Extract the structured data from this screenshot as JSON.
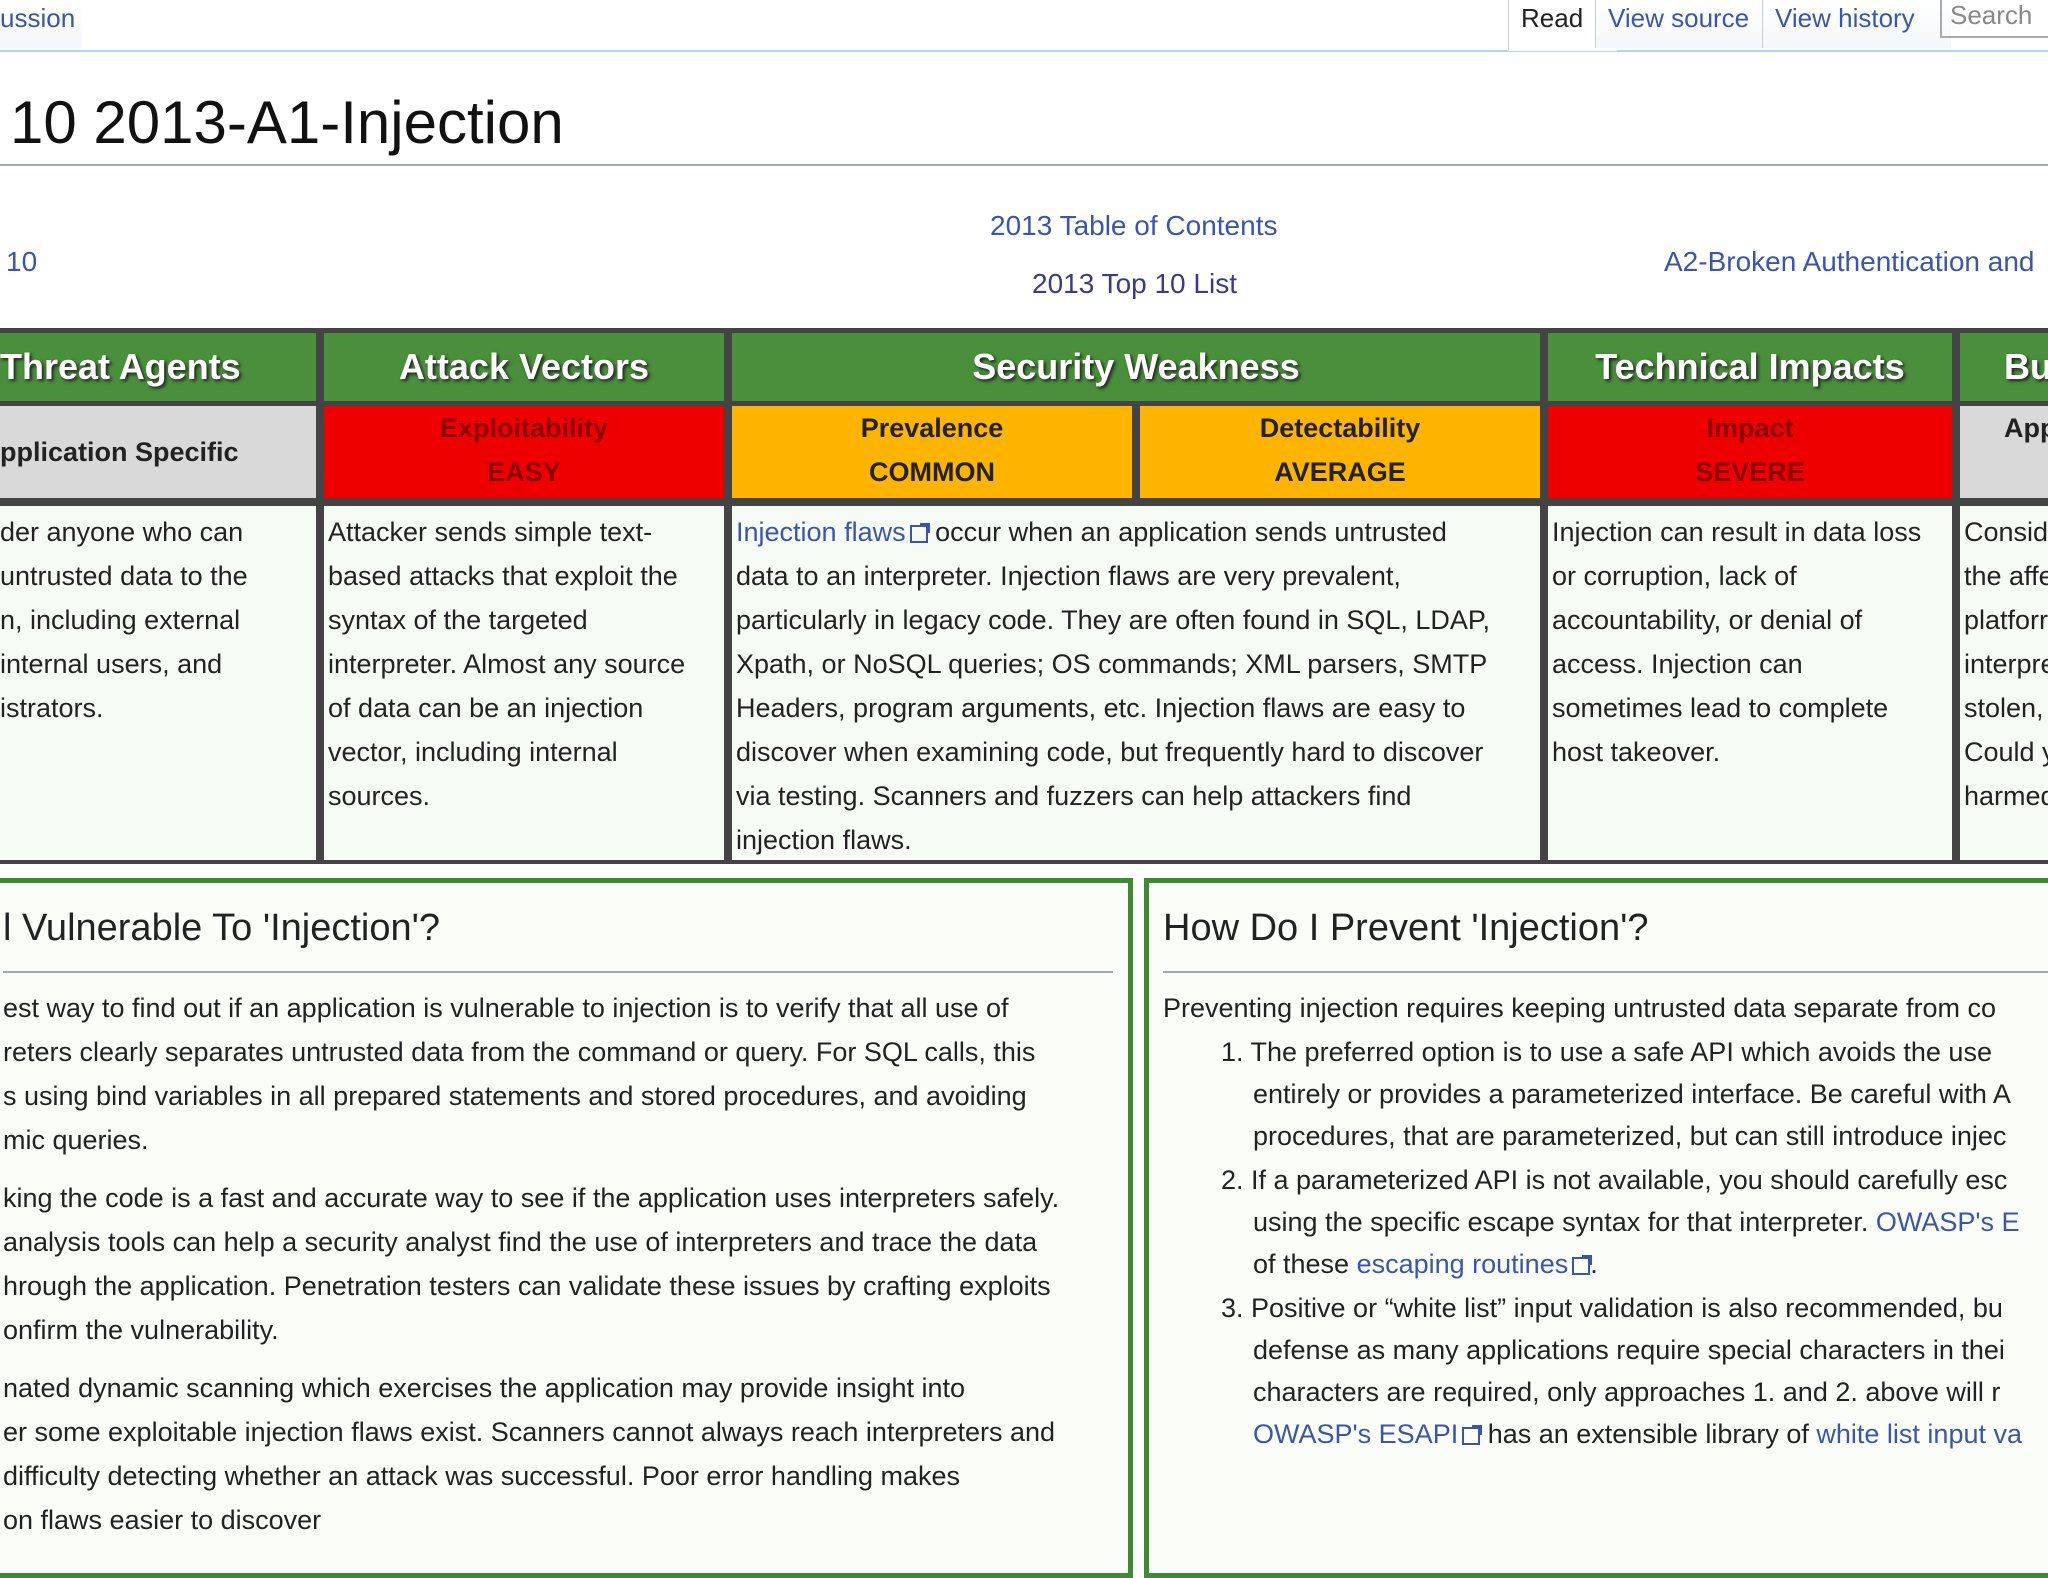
{
  "tabs": {
    "discussion": "ussion",
    "read": "Read",
    "view_source": "View source",
    "view_history": "View history",
    "search_placeholder": "Search"
  },
  "page_title": "10 2013-A1-Injection",
  "nav": {
    "left": "10",
    "center_top": "2013 Table of Contents",
    "center_bottom": "2013 Top 10 List",
    "right": "A2-Broken Authentication and"
  },
  "table": {
    "headers": [
      "Threat Agents",
      "Attack Vectors",
      "Security Weakness",
      "Technical Impacts",
      "Bu"
    ],
    "sub": {
      "threat": "pplication Specific",
      "exploitability_label": "Exploitability",
      "exploitability_value": "EASY",
      "prevalence_label": "Prevalence",
      "prevalence_value": "COMMON",
      "detectability_label": "Detectability",
      "detectability_value": "AVERAGE",
      "impact_label": "Impact",
      "impact_value": "SEVERE",
      "business": "App"
    },
    "body": {
      "threat": [
        "der anyone who can",
        "untrusted data to the",
        "n, including external",
        " internal users, and",
        "istrators."
      ],
      "attack": [
        "Attacker sends simple text-",
        "based attacks that exploit the",
        "syntax of the targeted",
        "interpreter. Almost any source",
        "of data can be an injection",
        "vector, including internal",
        "sources."
      ],
      "weakness_link": "Injection flaws",
      "weakness_first_rest": " occur when an application sends untrusted",
      "weakness": [
        "data to an interpreter. Injection flaws are very prevalent,",
        "particularly in legacy code. They are often found in SQL, LDAP,",
        "Xpath, or NoSQL queries; OS commands; XML parsers, SMTP",
        "Headers, program arguments, etc. Injection flaws are easy to",
        "discover when examining code, but frequently hard to discover",
        "via testing. Scanners and fuzzers can help attackers find",
        "injection flaws."
      ],
      "impact": [
        "Injection can result in data loss",
        "or corruption, lack of",
        "accountability, or denial of",
        "access. Injection can",
        "sometimes lead to complete",
        "host takeover."
      ],
      "business": [
        "Consid",
        "the affe",
        "platforr",
        "interpre",
        "stolen,",
        "Could y",
        "harmed"
      ]
    }
  },
  "vuln": {
    "title": "l Vulnerable To 'Injection'?",
    "p1": [
      "est way to find out if an application is vulnerable to injection is to verify that all use of",
      "reters clearly separates untrusted data from the command or query. For SQL calls, this",
      "s using bind variables in all prepared statements and stored procedures, and avoiding",
      "mic queries."
    ],
    "p2": [
      "king the code is a fast and accurate way to see if the application uses interpreters safely.",
      " analysis tools can help a security analyst find the use of interpreters and trace the data",
      "hrough the application. Penetration testers can validate these issues by crafting exploits",
      "onfirm the vulnerability."
    ],
    "p3": [
      "nated dynamic scanning which exercises the application may provide insight into",
      "er some exploitable injection flaws exist. Scanners cannot always reach interpreters and",
      "difficulty detecting whether an attack was successful. Poor error handling makes",
      "on flaws easier to discover"
    ]
  },
  "prevent": {
    "title": "How Do I Prevent 'Injection'?",
    "intro": "Preventing injection requires keeping untrusted data separate from co",
    "item1": [
      "1. The preferred option is to use a safe API which avoids the use",
      "entirely or provides a parameterized interface. Be careful with A",
      "procedures, that are parameterized, but can still introduce injec"
    ],
    "item2_l1": "2. If a parameterized API is not available, you should carefully esc",
    "item2_l2_text": "using the specific escape syntax for that interpreter. ",
    "item2_l2_link": "OWASP's E",
    "item2_l3_text": "of these ",
    "item2_l3_link": "escaping routines",
    "item2_l3_end": ".",
    "item3": [
      "3. Positive or “white list” input validation is also recommended, bu",
      "defense as many applications require special characters in thei",
      "characters are required, only approaches 1. and 2. above will r"
    ],
    "item3_l4_link1": "OWASP's ESAPI",
    "item3_l4_text": " has an extensible library of ",
    "item3_l4_link2": "white list input va"
  }
}
